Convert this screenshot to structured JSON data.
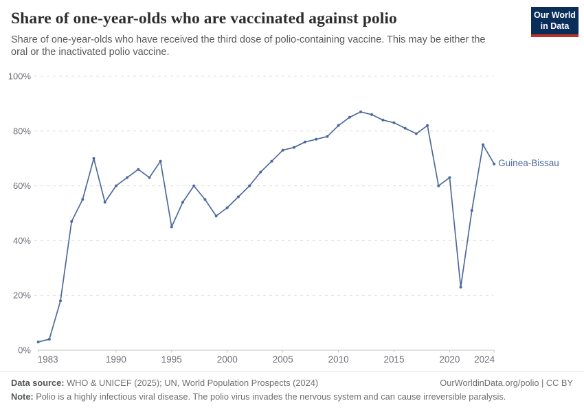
{
  "header": {
    "title": "Share of one-year-olds who are vaccinated against polio",
    "subtitle": "Share of one-year-olds who have received the third dose of polio-containing vaccine. This may be either the oral or the inactivated polio vaccine."
  },
  "logo": {
    "line1": "Our World",
    "line2": "in Data",
    "bg_color": "#0a2d5a",
    "stripe_color": "#be3228"
  },
  "chart_data": {
    "type": "line",
    "title": "Share of one-year-olds who are vaccinated against polio",
    "entity_label": "Guinea-Bissau",
    "line_color": "#4c6a9c",
    "years": [
      1983,
      1984,
      1985,
      1986,
      1987,
      1988,
      1989,
      1990,
      1991,
      1992,
      1993,
      1994,
      1995,
      1996,
      1997,
      1998,
      1999,
      2000,
      2001,
      2002,
      2003,
      2004,
      2005,
      2006,
      2007,
      2008,
      2009,
      2010,
      2011,
      2012,
      2013,
      2014,
      2015,
      2016,
      2017,
      2018,
      2019,
      2020,
      2021,
      2022,
      2023,
      2024
    ],
    "values": [
      3,
      4,
      18,
      47,
      55,
      70,
      54,
      60,
      63,
      66,
      63,
      69,
      45,
      54,
      60,
      55,
      49,
      52,
      56,
      60,
      65,
      69,
      73,
      74,
      76,
      77,
      78,
      82,
      85,
      87,
      86,
      84,
      83,
      81,
      79,
      82,
      60,
      63,
      23,
      51,
      75,
      68
    ],
    "xlabel": "",
    "ylabel": "",
    "ylim": [
      0,
      100
    ],
    "yticks": [
      0,
      20,
      40,
      60,
      80,
      100
    ],
    "ytick_suffix": "%",
    "xticks": [
      1983,
      1990,
      1995,
      2000,
      2005,
      2010,
      2015,
      2020,
      2024
    ],
    "grid": "horizontal-dashed",
    "legend": "end-of-line-label"
  },
  "footer": {
    "datasource_label": "Data source:",
    "datasource_text": " WHO & UNICEF (2025); UN, World Population Prospects (2024)",
    "link_text": "OurWorldinData.org/polio | CC BY",
    "note_label": "Note:",
    "note_text": " Polio is a highly infectious viral disease. The polio virus invades the nervous system and can cause irreversible paralysis."
  }
}
